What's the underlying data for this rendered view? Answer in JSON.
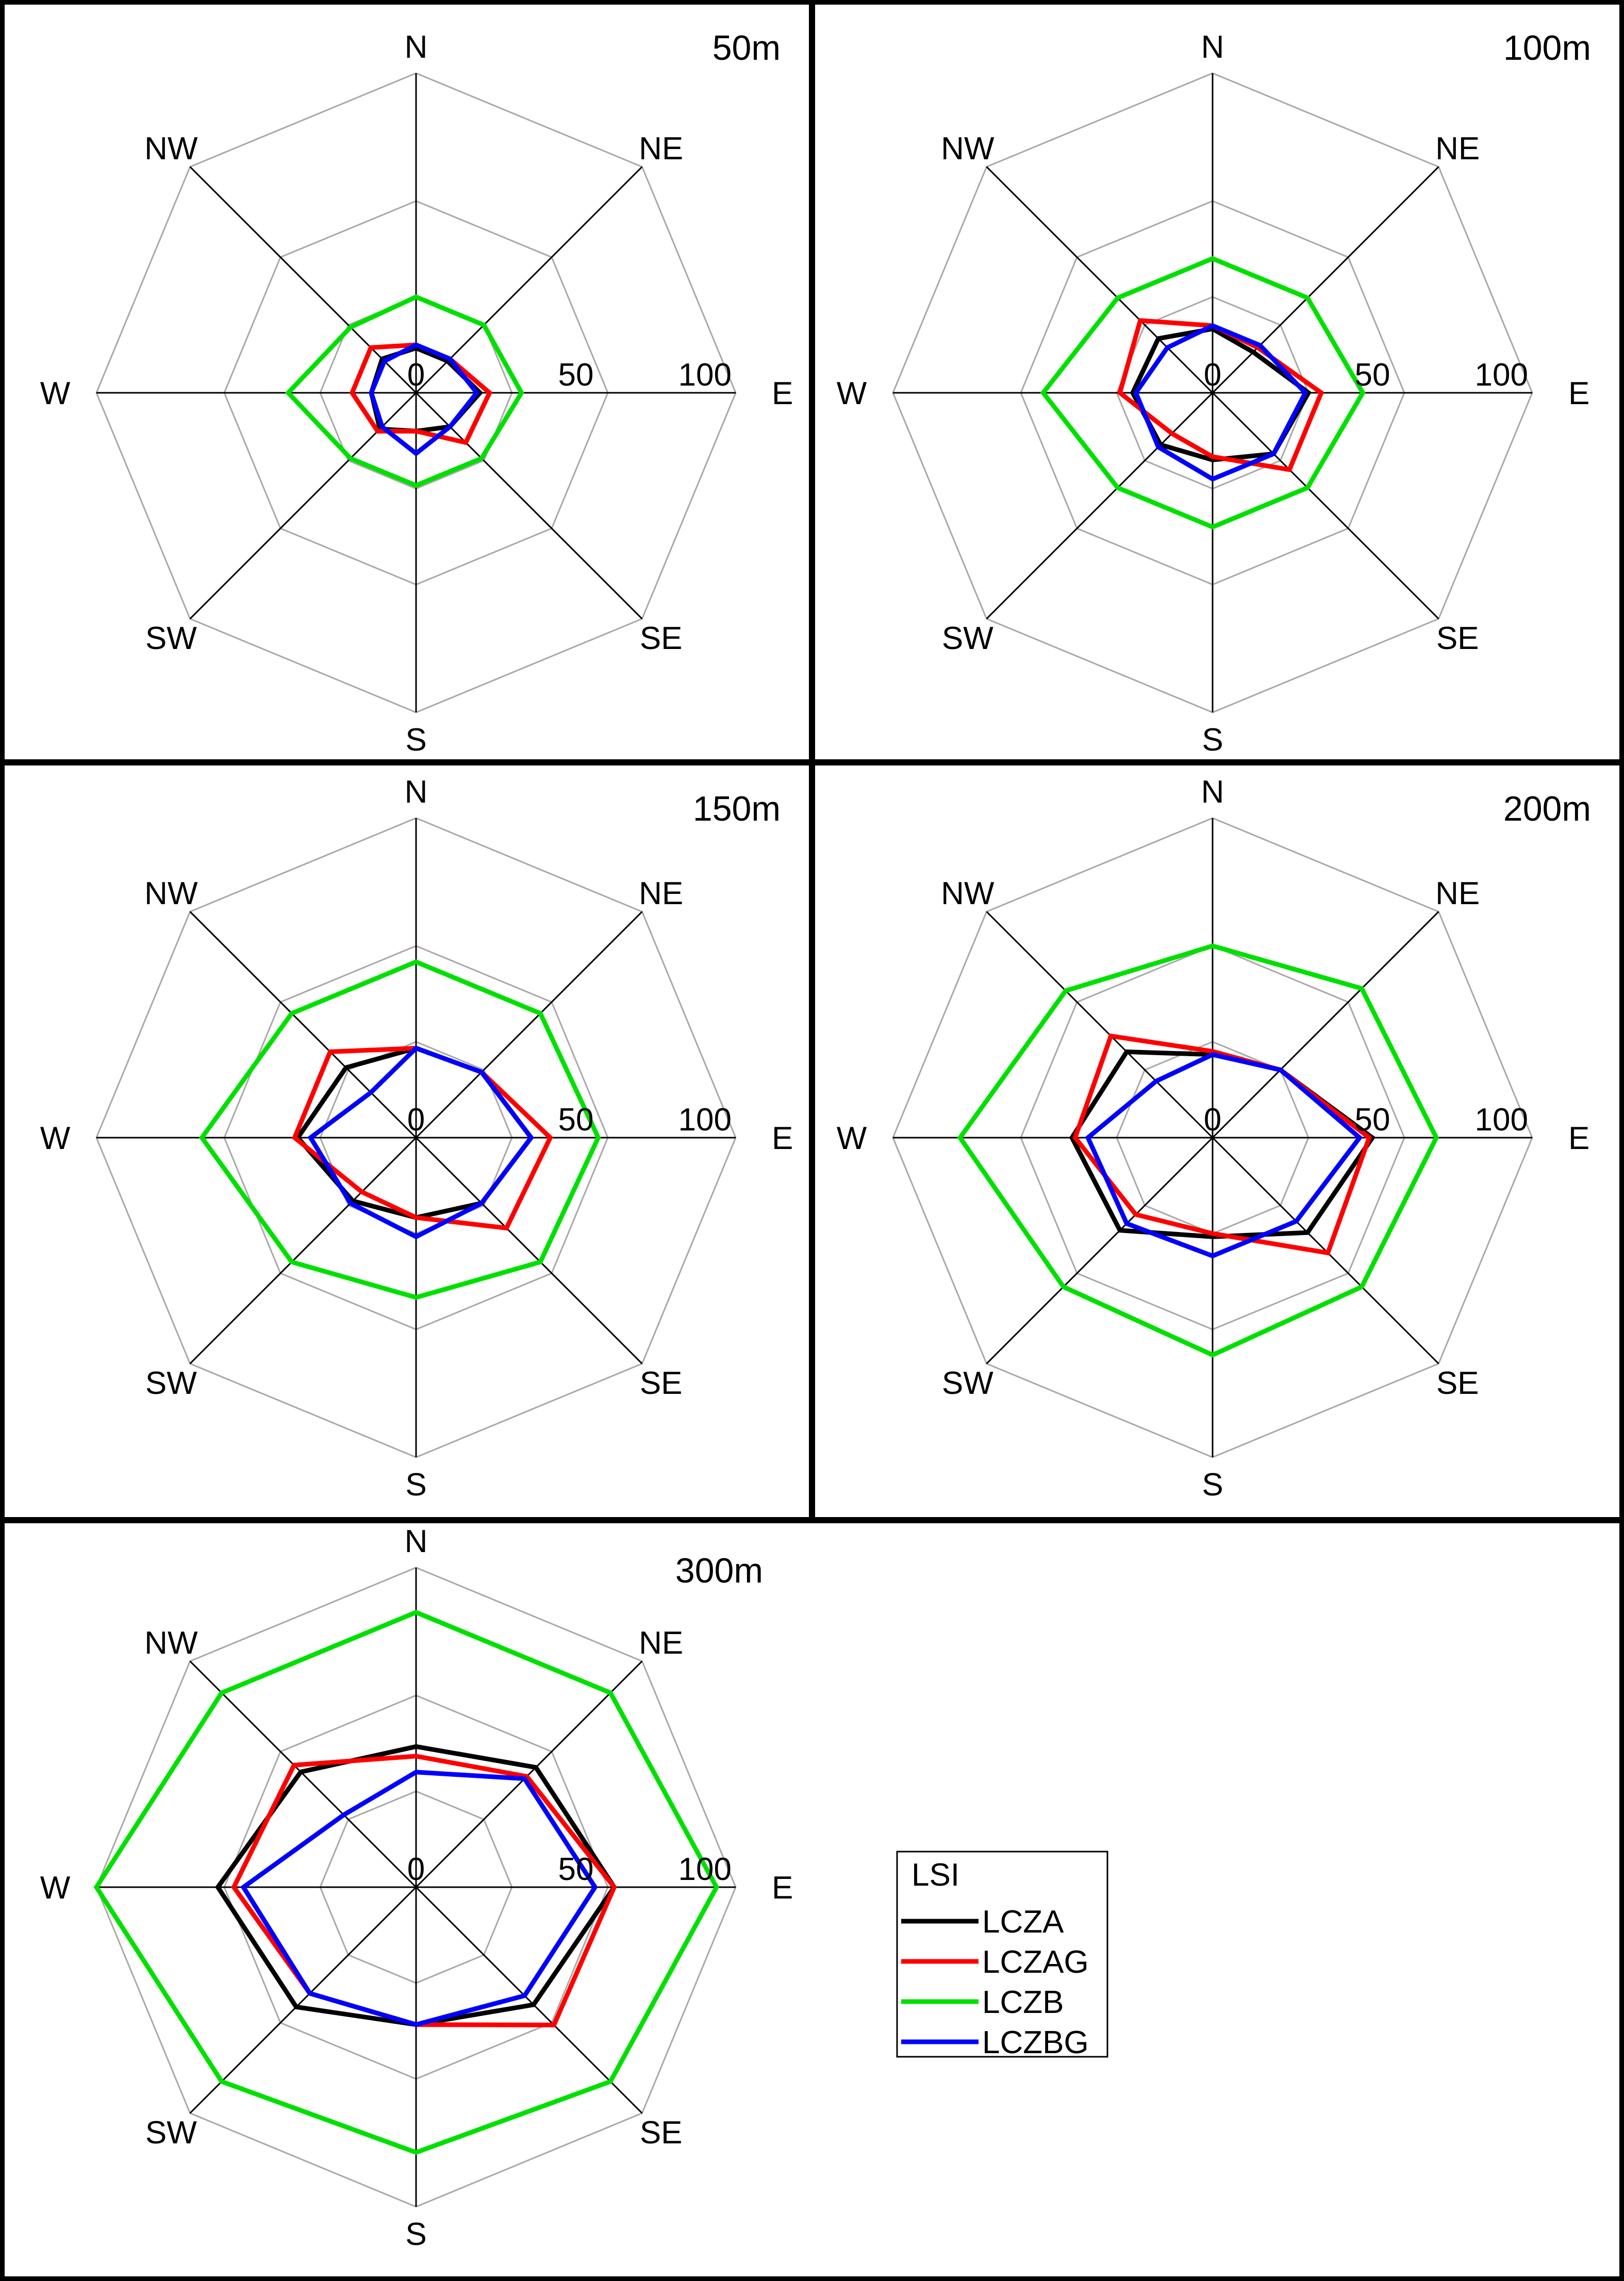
{
  "chart_data": {
    "type": "radar",
    "directions": [
      "N",
      "NE",
      "E",
      "SE",
      "S",
      "SW",
      "W",
      "NW"
    ],
    "radial_ticks": [
      "0",
      "50",
      "100"
    ],
    "rlim": [
      0,
      100
    ],
    "grid": true,
    "legend": {
      "title": "LSI",
      "placement": "right of 300m panel",
      "entries": [
        {
          "label": "LCZA",
          "color": "#000000"
        },
        {
          "label": "LCZAG",
          "color": "#ff0000"
        },
        {
          "label": "LCZB",
          "color": "#00e000"
        },
        {
          "label": "LCZBG",
          "color": "#0000ff"
        }
      ]
    },
    "panels": [
      {
        "title": "50m",
        "series": [
          {
            "name": "LCZA",
            "color": "#000000",
            "values": [
              14,
              14,
              20,
              15,
              12,
              16,
              14,
              15
            ]
          },
          {
            "name": "LCZAG",
            "color": "#ff0000",
            "values": [
              15,
              15,
              23,
              22,
              12,
              17,
              20,
              20
            ]
          },
          {
            "name": "LCZB",
            "color": "#00e000",
            "values": [
              30,
              30,
              33,
              29,
              29,
              29,
              40,
              29
            ]
          },
          {
            "name": "LCZBG",
            "color": "#0000ff",
            "values": [
              15,
              15,
              19,
              15,
              19,
              15,
              14,
              14
            ]
          }
        ]
      },
      {
        "title": "100m",
        "series": [
          {
            "name": "LCZA",
            "color": "#000000",
            "values": [
              20,
              18,
              30,
              27,
              21,
              23,
              25,
              24
            ]
          },
          {
            "name": "LCZAG",
            "color": "#ff0000",
            "values": [
              21,
              20,
              34,
              34,
              20,
              18,
              29,
              32
            ]
          },
          {
            "name": "LCZB",
            "color": "#00e000",
            "values": [
              42,
              42,
              47,
              42,
              42,
              42,
              53,
              42
            ]
          },
          {
            "name": "LCZBG",
            "color": "#0000ff",
            "values": [
              21,
              21,
              29,
              27,
              27,
              24,
              24,
              20
            ]
          }
        ]
      },
      {
        "title": "150m",
        "series": [
          {
            "name": "LCZA",
            "color": "#000000",
            "values": [
              28,
              29,
              36,
              29,
              25,
              28,
              37,
              31
            ]
          },
          {
            "name": "LCZAG",
            "color": "#ff0000",
            "values": [
              28,
              29,
              42,
              40,
              25,
              24,
              38,
              38
            ]
          },
          {
            "name": "LCZB",
            "color": "#00e000",
            "values": [
              55,
              55,
              57,
              55,
              50,
              55,
              67,
              55
            ]
          },
          {
            "name": "LCZBG",
            "color": "#0000ff",
            "values": [
              28,
              29,
              36,
              29,
              31,
              29,
              33,
              20
            ]
          }
        ]
      },
      {
        "title": "200m",
        "series": [
          {
            "name": "LCZA",
            "color": "#000000",
            "values": [
              26,
              30,
              50,
              42,
              31,
              41,
              44,
              38
            ]
          },
          {
            "name": "LCZAG",
            "color": "#ff0000",
            "values": [
              27,
              30,
              49,
              51,
              30,
              34,
              43,
              45
            ]
          },
          {
            "name": "LCZB",
            "color": "#00e000",
            "values": [
              60,
              66,
              70,
              66,
              68,
              66,
              79,
              65
            ]
          },
          {
            "name": "LCZBG",
            "color": "#0000ff",
            "values": [
              26,
              30,
              46,
              37,
              37,
              38,
              39,
              25
            ]
          }
        ]
      },
      {
        "title": "300m",
        "series": [
          {
            "name": "LCZA",
            "color": "#000000",
            "values": [
              44,
              53,
              62,
              52,
              43,
              53,
              62,
              51
            ]
          },
          {
            "name": "LCZAG",
            "color": "#ff0000",
            "values": [
              41,
              49,
              62,
              61,
              43,
              47,
              57,
              54
            ]
          },
          {
            "name": "LCZB",
            "color": "#00e000",
            "values": [
              86,
              86,
              94,
              86,
              83,
              86,
              100,
              86
            ]
          },
          {
            "name": "LCZBG",
            "color": "#0000ff",
            "values": [
              36,
              48,
              56,
              48,
              43,
              47,
              54,
              32
            ]
          }
        ]
      }
    ]
  }
}
